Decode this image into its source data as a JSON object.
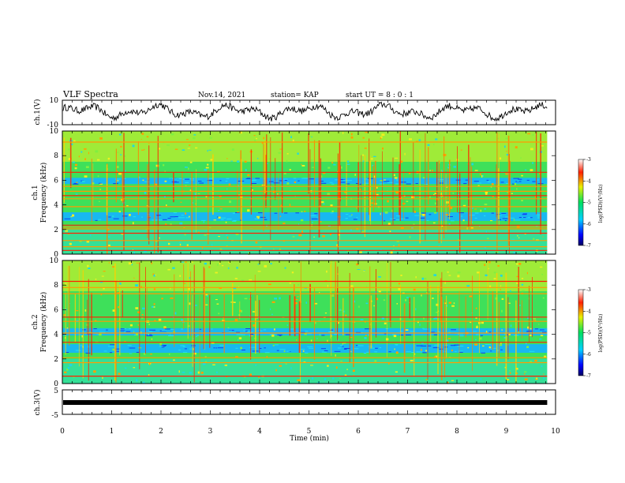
{
  "header": {
    "title": "VLF Spectra",
    "date": "Nov.14, 2021",
    "station": "station= KAP",
    "start": "start  UT =   8  : 0  : 1"
  },
  "chart_data": [
    {
      "id": "ch1-waveform",
      "type": "line",
      "ylabel": "ch.1(V)",
      "ylim": [
        -10,
        10
      ],
      "yticks": [
        "10",
        "-10"
      ],
      "xlim": [
        0,
        10
      ],
      "x_extent": [
        0,
        9.83
      ],
      "line_color": "#000000"
    },
    {
      "id": "ch1-spectrogram",
      "type": "heatmap",
      "ylabel": "ch.1\nFrequency (kHz)",
      "ylim": [
        0,
        10
      ],
      "yticks": [
        "0",
        "2",
        "4",
        "6",
        "8",
        "10"
      ],
      "xlim": [
        0,
        10
      ],
      "x_extent": [
        0,
        9.83
      ],
      "bands_khz": [
        0.3,
        0.6,
        1.1,
        1.7,
        2.05,
        2.2,
        2.35,
        3.85,
        4.5,
        4.75,
        5.1,
        5.5,
        6.65,
        9.1
      ],
      "dark_bands_khz": [
        [
          2.7,
          3.4
        ],
        [
          5.7,
          6.2
        ]
      ],
      "colorbar": {
        "label": "log(PSD)(V²/Hz)",
        "ticks": [
          "-3",
          "-4",
          "-5",
          "-6",
          "-7"
        ],
        "range": [
          -7,
          -3
        ]
      }
    },
    {
      "id": "ch2-spectrogram",
      "type": "heatmap",
      "ylabel": "ch.2\nFrequency (kHz)",
      "ylim": [
        0,
        10
      ],
      "yticks": [
        "0",
        "2",
        "4",
        "6",
        "8",
        "10"
      ],
      "xlim": [
        0,
        10
      ],
      "x_extent": [
        0,
        9.83
      ],
      "bands_khz": [
        0.6,
        1.7,
        2.1,
        3.35,
        4.1,
        5.05,
        5.4,
        7.3,
        7.8,
        8.3
      ],
      "dark_bands_khz": [
        [
          2.5,
          3.2
        ],
        [
          3.9,
          4.5
        ]
      ],
      "colorbar": {
        "label": "log(PSD)(V²/Hz)",
        "ticks": [
          "-3",
          "-4",
          "-5",
          "-6",
          "-7"
        ],
        "range": [
          -7,
          -3
        ]
      }
    },
    {
      "id": "ch3-waveform",
      "type": "line",
      "ylabel": "ch.3(V)",
      "ylim": [
        -5,
        5
      ],
      "yticks": [
        "5",
        "-5"
      ],
      "xlim": [
        0,
        10
      ],
      "x_extent": [
        0,
        9.83
      ],
      "line_color": "#000000"
    }
  ],
  "xaxis": {
    "label": "Time  (min)",
    "ticks": [
      "0",
      "1",
      "2",
      "3",
      "4",
      "5",
      "6",
      "7",
      "8",
      "9",
      "10"
    ]
  }
}
